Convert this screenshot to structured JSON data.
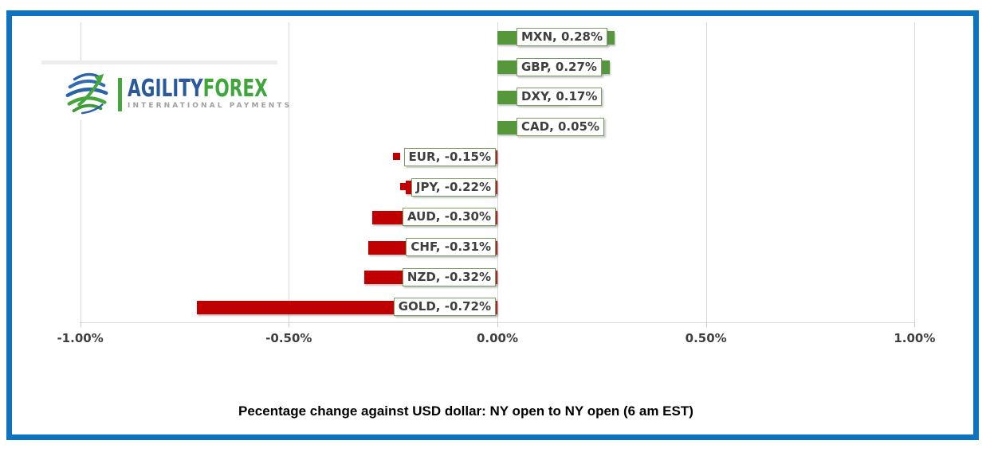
{
  "frame": {
    "border_color": "#0d72bf",
    "background": "#ffffff"
  },
  "logo": {
    "brand_primary": "AGILITY",
    "brand_secondary": "FOREX",
    "tagline": "INTERNATIONAL PAYMENTS",
    "colors": {
      "brand_primary_text": "#2a5a9c",
      "brand_secondary_text": "#3ea63b",
      "tagline_text": "#a0a0a0",
      "icon_blue": "#2a64a8",
      "icon_green": "#45a63c"
    }
  },
  "chart_data": {
    "type": "bar",
    "orientation": "horizontal",
    "categories": [
      "MXN",
      "GBP",
      "DXY",
      "CAD",
      "EUR",
      "JPY",
      "AUD",
      "CHF",
      "NZD",
      "GOLD"
    ],
    "values": [
      0.28,
      0.27,
      0.17,
      0.05,
      -0.15,
      -0.22,
      -0.3,
      -0.31,
      -0.32,
      -0.72
    ],
    "labels": [
      "MXN, 0.28%",
      "GBP, 0.27%",
      "DXY, 0.17%",
      "CAD, 0.05%",
      "EUR, -0.15%",
      "JPY, -0.22%",
      "AUD, -0.30%",
      "CHF, -0.31%",
      "NZD, -0.32%",
      "GOLD, -0.72%"
    ],
    "x_ticks": [
      {
        "label": "-1.00%",
        "value": -1.0
      },
      {
        "label": "-0.50%",
        "value": -0.5
      },
      {
        "label": "0.00%",
        "value": 0.0
      },
      {
        "label": "0.50%",
        "value": 0.5
      },
      {
        "label": "1.00%",
        "value": 1.0
      }
    ],
    "xlim": [
      -1.0,
      1.0
    ],
    "grid": true,
    "legend_position": "none",
    "data_labels": "inside-base-with-legend-key",
    "caption": "Pecentage change against USD dollar: NY open to NY open  (6 am EST)",
    "colors": {
      "positive_bar": "#55983a",
      "negative_bar": "#c00000",
      "label_box_border": "#7a9e60",
      "label_box_background": "#ffffff",
      "label_text": "#3f3f3f",
      "axis_text": "#3f3f3f",
      "gridline": "#d9d9d9"
    }
  }
}
